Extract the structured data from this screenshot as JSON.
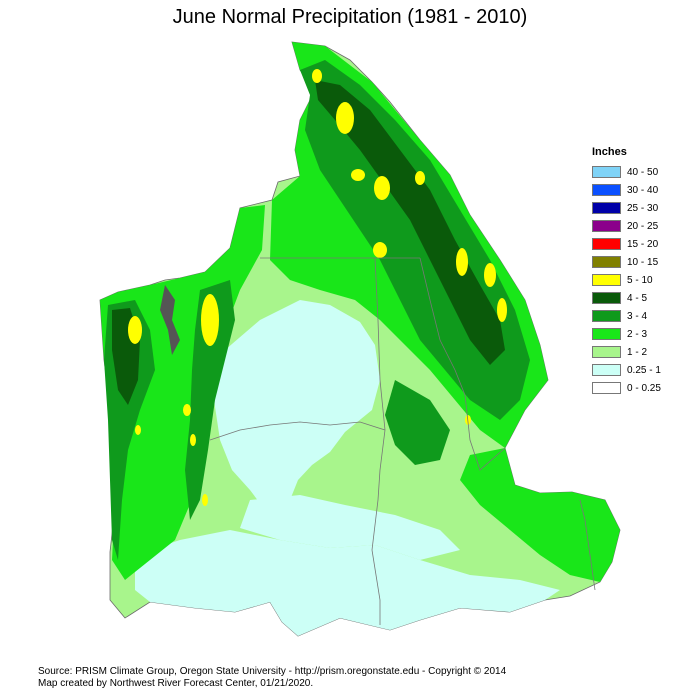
{
  "title": "June Normal Precipitation (1981 - 2010)",
  "legend": {
    "title": "Inches",
    "items": [
      {
        "label": "40 - 50",
        "color": "#7fd3f7"
      },
      {
        "label": "30 - 40",
        "color": "#0b50ff"
      },
      {
        "label": "25 - 30",
        "color": "#0000a8"
      },
      {
        "label": "20 - 25",
        "color": "#8b008b"
      },
      {
        "label": "15 - 20",
        "color": "#ff0000"
      },
      {
        "label": "10 - 15",
        "color": "#808000"
      },
      {
        "label": "5 - 10",
        "color": "#ffff00"
      },
      {
        "label": "4 - 5",
        "color": "#0a5a0a"
      },
      {
        "label": "3 - 4",
        "color": "#0f9a1c"
      },
      {
        "label": "2 - 3",
        "color": "#19e619"
      },
      {
        "label": "1 - 2",
        "color": "#a8f58c"
      },
      {
        "label": "0.25 - 1",
        "color": "#ccfff6"
      },
      {
        "label": "0 - 0.25",
        "color": "#ffffff"
      }
    ]
  },
  "credits": {
    "line1": "Source: PRISM Climate Group, Oregon State University - http://prism.oregonstate.edu - Copyright © 2014",
    "line2": "Map created by Northwest River Forecast Center, 01/21/2020."
  }
}
